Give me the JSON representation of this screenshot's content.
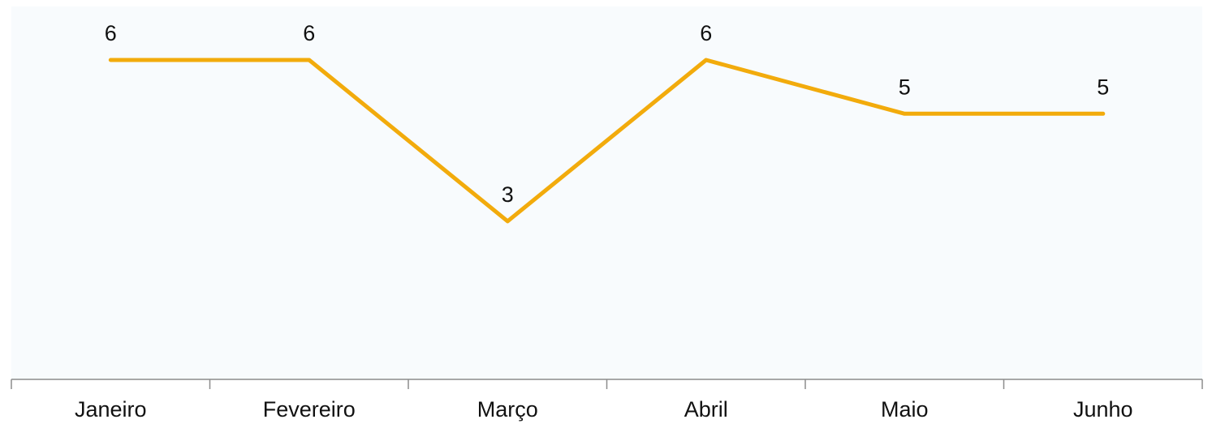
{
  "chart_data": {
    "type": "line",
    "categories": [
      "Janeiro",
      "Fevereiro",
      "Março",
      "Abril",
      "Maio",
      "Junho"
    ],
    "series": [
      {
        "values": [
          6,
          6,
          3,
          6,
          5,
          5
        ]
      }
    ],
    "data_labels": [
      "6",
      "6",
      "3",
      "6",
      "5",
      "5"
    ],
    "ylim": [
      0,
      6
    ],
    "grid": false,
    "legend": "none",
    "colors": {
      "line": "#f2ab0c",
      "plot_background": "#f8fbfd",
      "axis": "#8c8c8c",
      "text": "#111111"
    }
  }
}
